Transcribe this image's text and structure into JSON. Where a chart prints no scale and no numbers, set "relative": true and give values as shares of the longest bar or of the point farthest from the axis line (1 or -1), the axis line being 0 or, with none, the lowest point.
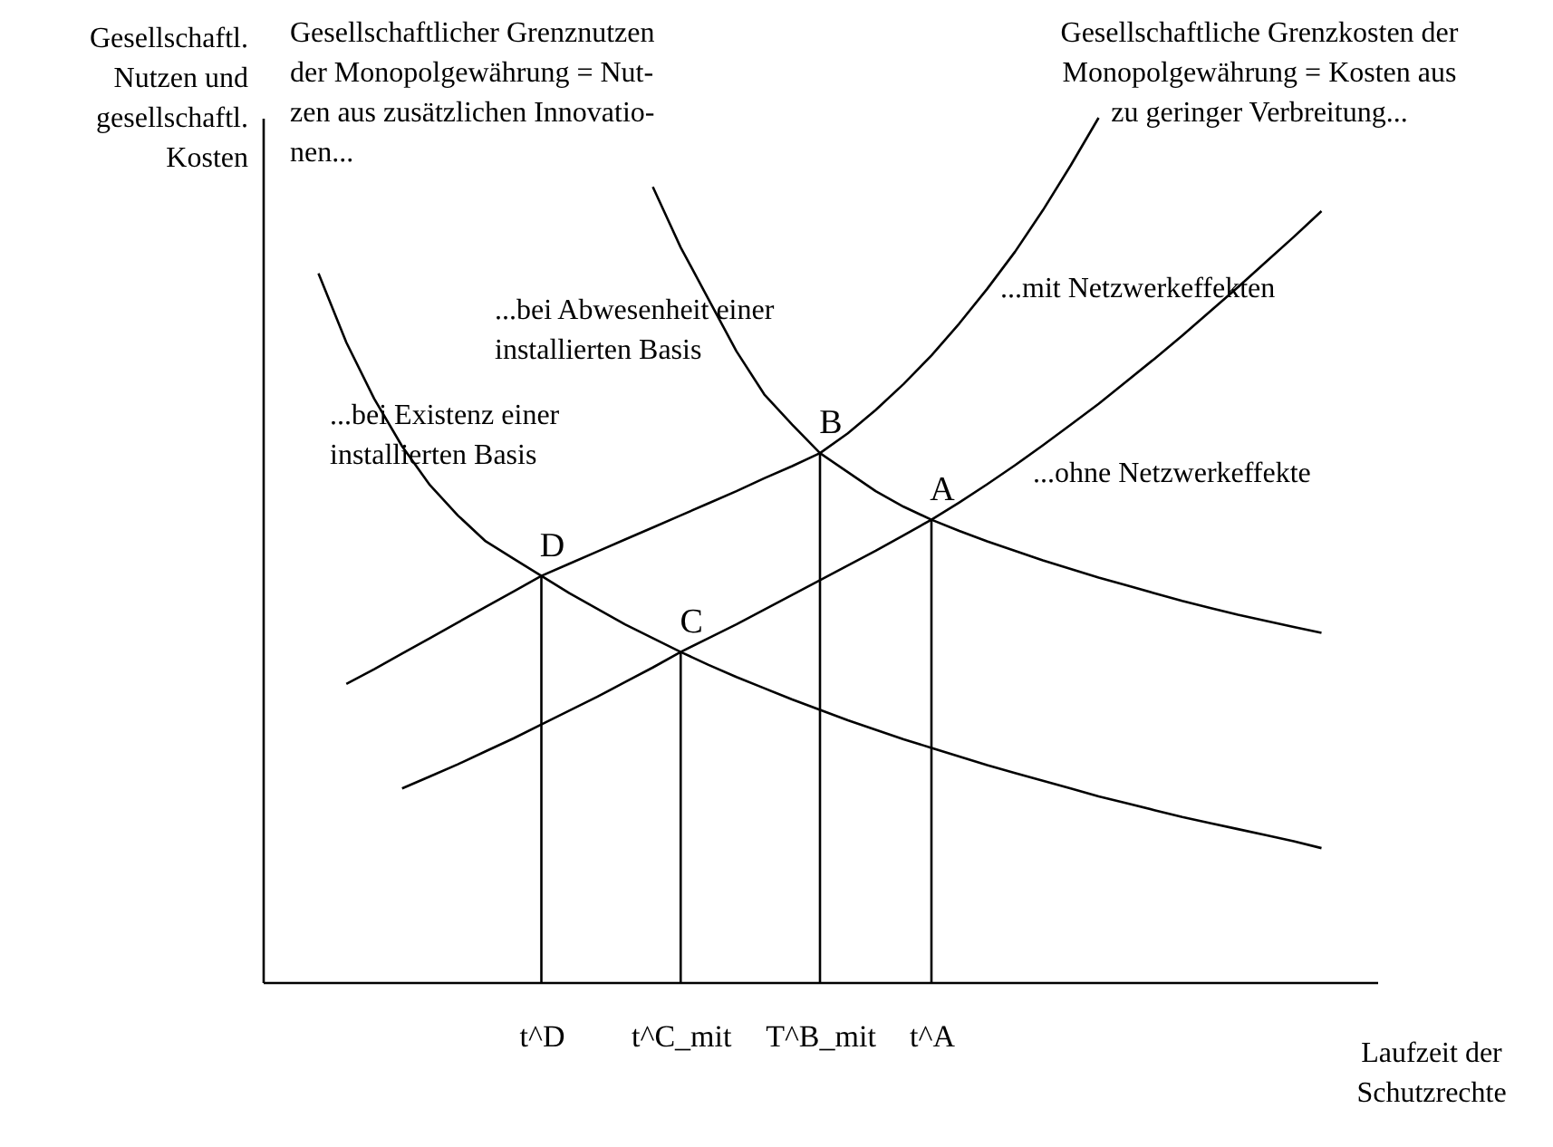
{
  "chart_data": {
    "type": "line",
    "relative": true,
    "grid": false,
    "marker": "none",
    "line_style": "solid",
    "tick_labels": "x",
    "ylabel": "Gesellschaftl.\nNutzen und\ngesellschaftl.\nKosten",
    "xlabel": "Laufzeit der\nSchutzrechte",
    "categories": [
      null,
      null,
      null,
      null,
      null,
      null,
      null,
      null,
      null,
      null,
      "t^D",
      null,
      null,
      null,
      null,
      "t^C_mit",
      null,
      null,
      null,
      null,
      "T^B_mit",
      null,
      null,
      null,
      "t^A",
      null,
      null,
      null,
      null,
      null,
      null,
      null,
      null,
      null,
      null,
      null,
      null,
      null,
      null,
      null,
      null
    ],
    "series": [
      {
        "color": "#000000",
        "values": [
          null,
          null,
          null,
          null,
          null,
          null,
          null,
          null,
          null,
          null,
          null,
          null,
          null,
          null,
          0.92,
          0.85,
          0.79,
          0.73,
          0.68,
          0.645,
          0.612,
          0.59,
          0.568,
          0.55,
          0.535,
          0.522,
          0.51,
          0.499,
          0.488,
          0.478,
          0.468,
          0.459,
          0.45,
          0.441,
          0.433,
          0.425,
          0.418,
          0.411,
          0.404,
          null,
          null
        ]
      },
      {
        "color": "#000000",
        "values": [
          null,
          null,
          0.82,
          0.74,
          0.675,
          0.62,
          0.575,
          0.54,
          0.51,
          0.49,
          0.47,
          0.45,
          0.432,
          0.414,
          0.398,
          0.382,
          0.367,
          0.353,
          0.34,
          0.327,
          0.315,
          0.303,
          0.292,
          0.281,
          0.271,
          0.261,
          0.251,
          0.242,
          0.233,
          0.224,
          0.215,
          0.207,
          0.199,
          0.191,
          0.184,
          0.177,
          0.17,
          0.163,
          0.155,
          null,
          null
        ]
      },
      {
        "color": "#000000",
        "values": [
          null,
          null,
          null,
          0.345,
          0.362,
          0.38,
          0.398,
          0.416,
          0.434,
          0.452,
          0.47,
          0.484,
          0.498,
          0.512,
          0.526,
          0.54,
          0.554,
          0.568,
          0.583,
          0.597,
          0.612,
          0.635,
          0.662,
          0.692,
          0.725,
          0.762,
          0.802,
          0.845,
          0.893,
          0.945,
          1.0,
          null,
          null,
          null,
          null,
          null,
          null,
          null,
          null,
          null,
          null
        ]
      },
      {
        "color": "#000000",
        "values": [
          null,
          null,
          null,
          null,
          null,
          0.224,
          0.238,
          0.252,
          0.267,
          0.282,
          0.298,
          0.314,
          0.33,
          0.347,
          0.364,
          0.382,
          0.398,
          0.414,
          0.431,
          0.448,
          0.465,
          0.482,
          0.499,
          0.517,
          0.535,
          0.555,
          0.576,
          0.598,
          0.621,
          0.645,
          0.669,
          0.695,
          0.721,
          0.748,
          0.776,
          0.804,
          0.833,
          0.862,
          0.892,
          null,
          null
        ]
      },
      {
        "type": "bar",
        "color": "#000000",
        "values": [
          null,
          null,
          null,
          null,
          null,
          null,
          null,
          null,
          null,
          null,
          0.47,
          null,
          null,
          null,
          null,
          0.382,
          null,
          null,
          null,
          null,
          0.612,
          null,
          null,
          null,
          0.535,
          null,
          null,
          null,
          null,
          null,
          null,
          null,
          null,
          null,
          null,
          null,
          null,
          null,
          null,
          null,
          null
        ]
      }
    ],
    "annotations": [
      "Gesellschaftlicher Grenznutzen\nder Monopolgewährung = Nut-\nzen aus zusätzlichen Innovatio-\nnen...",
      "Gesellschaftliche Grenzkosten der\nMonopolgewährung = Kosten aus\nzu geringer Verbreitung...",
      "...bei Abwesenheit einer\ninstallierten Basis",
      "...mit Netzwerkeffekten",
      "...bei Existenz einer\ninstallierten Basis",
      "...ohne Netzwerkeffekte",
      {
        "text": "B",
        "x": "T^B_mit",
        "y": 0.612
      },
      {
        "text": "A",
        "x": "t^A",
        "y": 0.535
      },
      {
        "text": "C",
        "x": "t^C_mit",
        "y": 0.382
      },
      {
        "text": "D",
        "x": "t^D",
        "y": 0.47
      }
    ]
  }
}
